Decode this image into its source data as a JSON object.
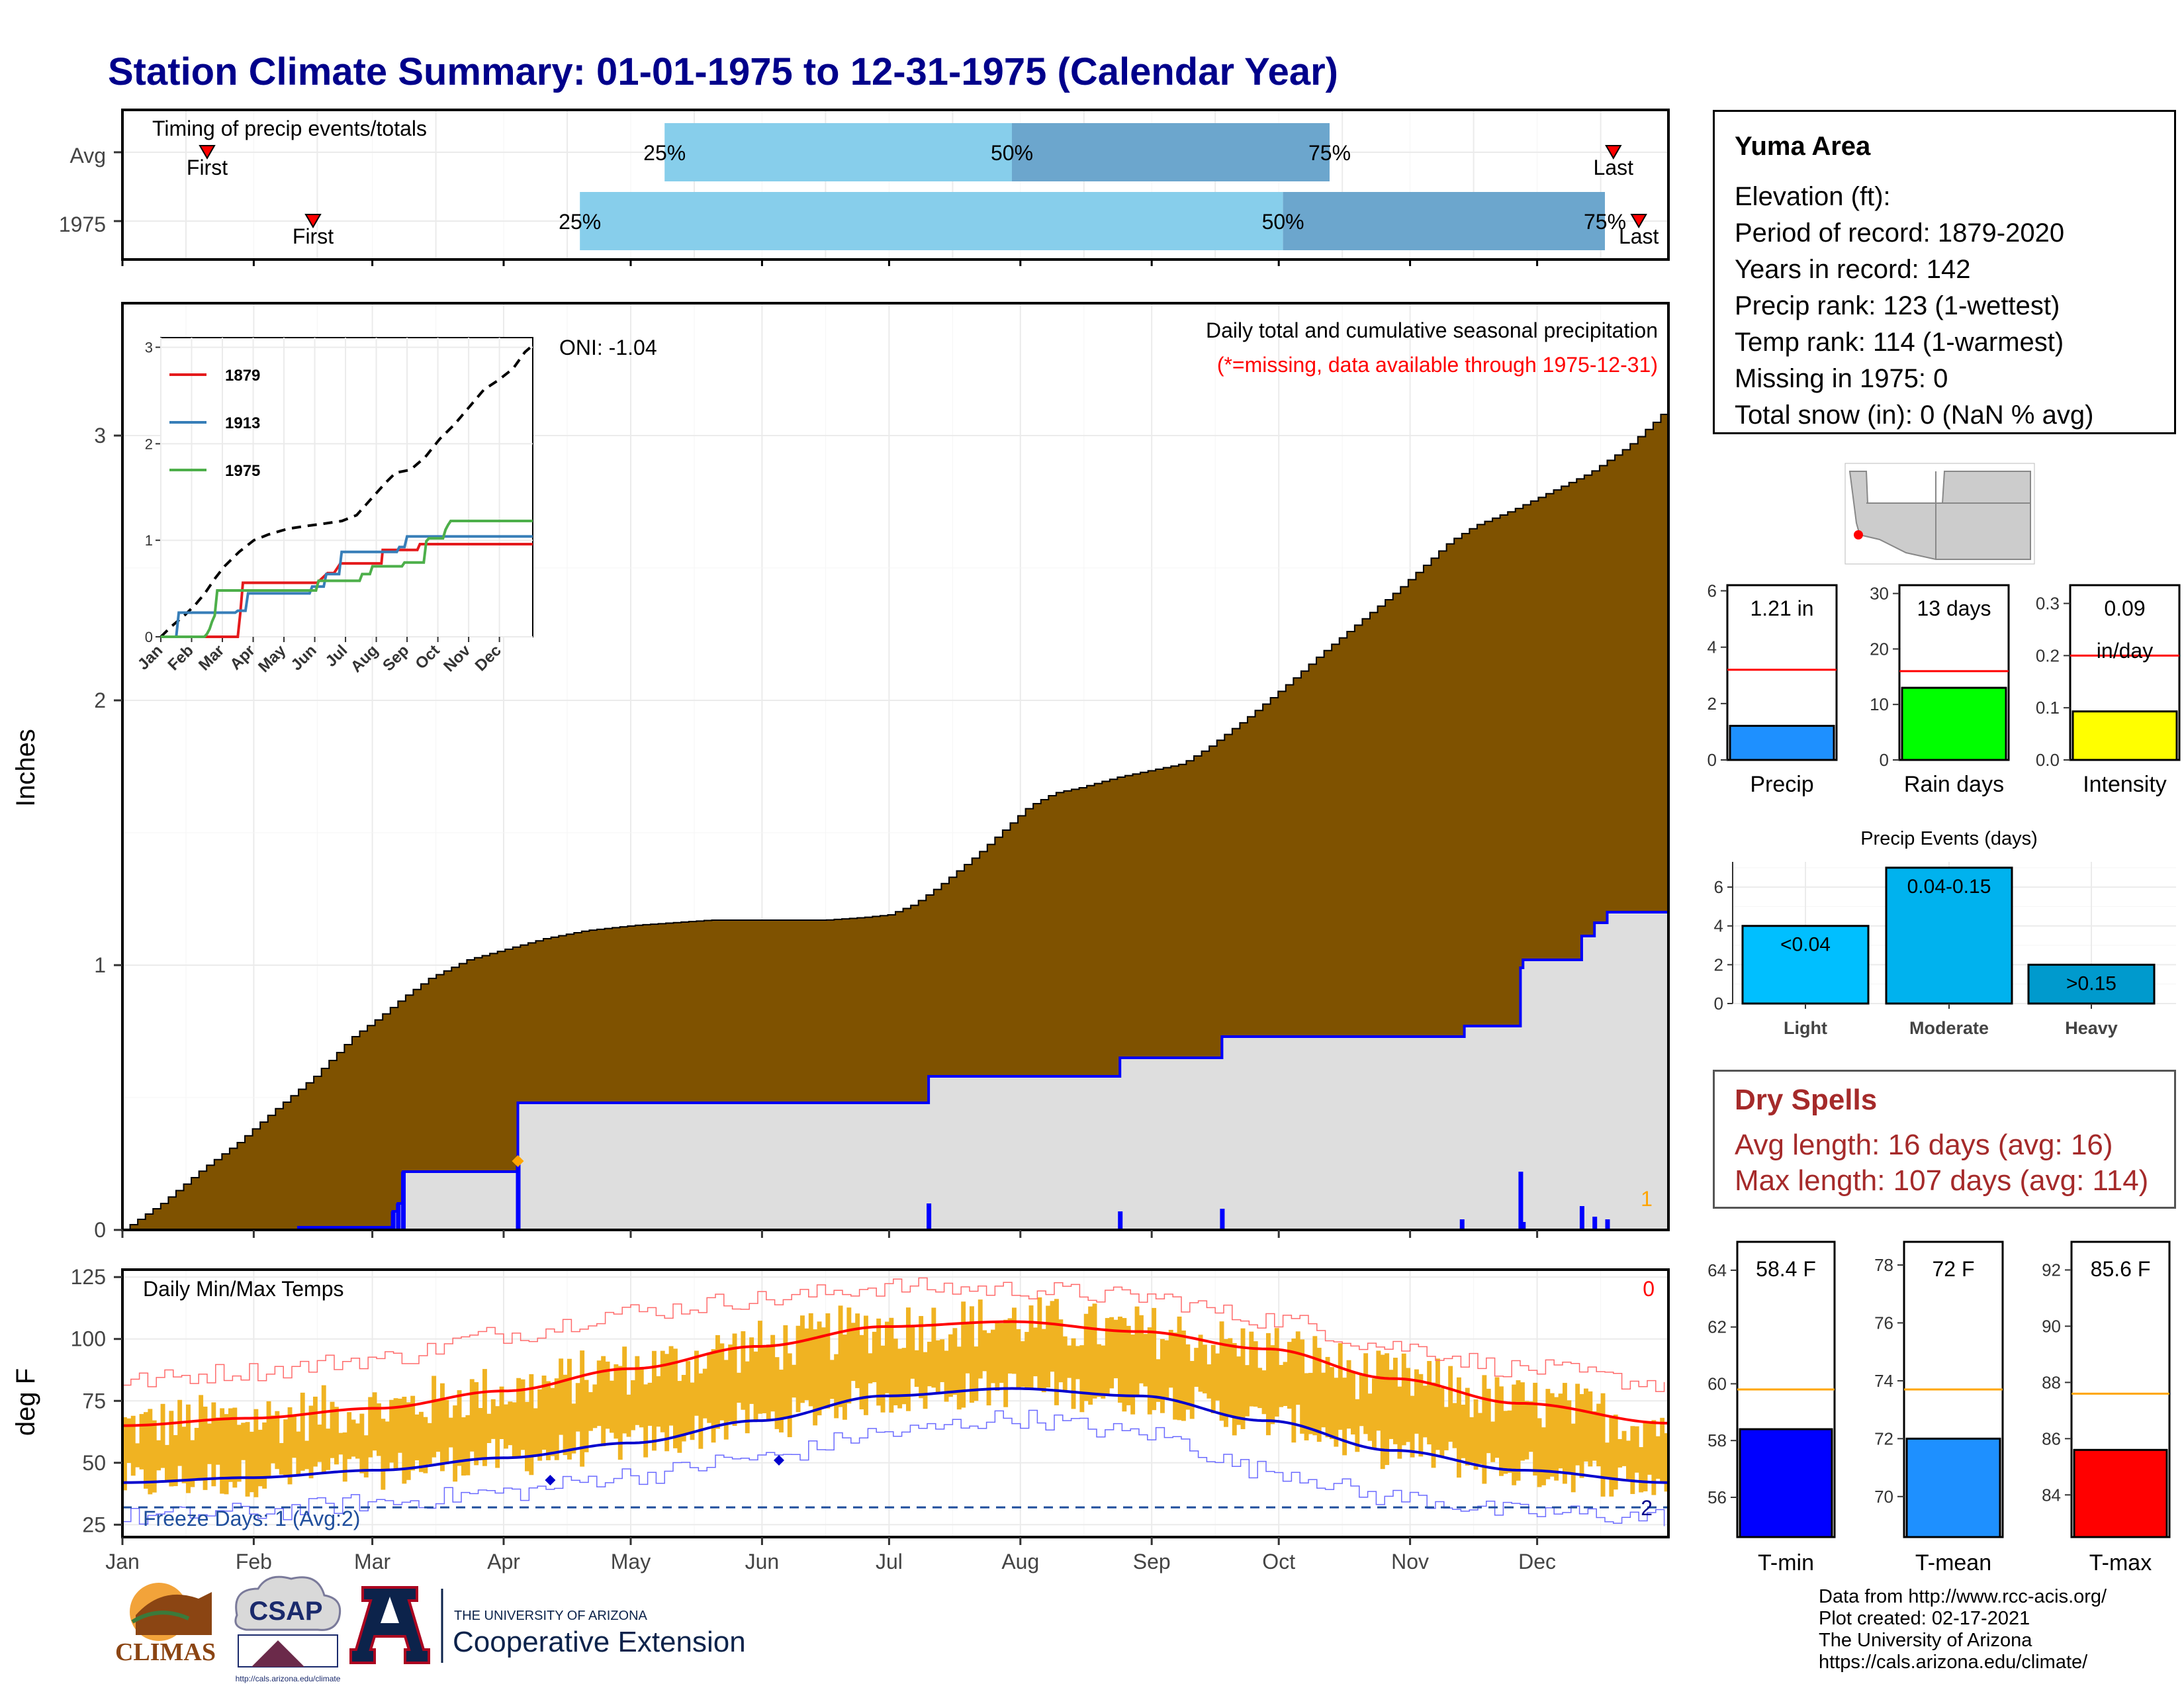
{
  "page": {
    "title": "Station Climate Summary: 01-01-1975 to 12-31-1975 (Calendar Year)"
  },
  "colors": {
    "title": "#00008b",
    "precip_fill": "#7f5200",
    "avg_fill": "#dedede",
    "blue_line": "#0000ff",
    "light_blue": "#87ceeb",
    "mid_blue": "#6ca6cd",
    "temp_bar": "#f0b322",
    "dry_title": "#a52a2a"
  },
  "station": {
    "name": "Yuma Area",
    "lines": [
      "Elevation (ft):",
      "Period of record: 1879-2020",
      "Years in record: 142",
      "Precip rank: 123 (1-wettest)",
      "Temp rank: 114 (1-warmest)",
      "Missing in 1975: 0",
      "Total snow (in): 0 (NaN % avg)"
    ]
  },
  "timing": {
    "title": "Timing of precip events/totals",
    "rows": [
      "Avg",
      "1975"
    ],
    "avg": {
      "first_doy": 20,
      "q25_doy": 128,
      "q50_doy": 210,
      "q75_doy": 285,
      "last_doy": 352
    },
    "year": {
      "first_doy": 45,
      "q25_doy": 108,
      "q50_doy": 274,
      "q75_doy": 350,
      "last_doy": 358
    },
    "labels": {
      "first": "First",
      "last": "Last",
      "q25": "25%",
      "q50": "50%",
      "q75": "75%"
    }
  },
  "main_chart": {
    "ylabel": "Inches",
    "ylim": [
      0,
      3.5
    ],
    "yticks": [
      0,
      1,
      2,
      3
    ],
    "months": [
      "Jan",
      "Feb",
      "Mar",
      "Apr",
      "May",
      "Jun",
      "Jul",
      "Aug",
      "Sep",
      "Oct",
      "Nov",
      "Dec"
    ],
    "oni": "ONI: -1.04",
    "legend_title": "Daily total and cumulative seasonal precipitation",
    "legend_note": "(*=missing, data available through 1975-12-31)",
    "corner_count": "1",
    "avg_cumulative": [
      [
        0,
        0
      ],
      [
        15,
        0.1
      ],
      [
        31,
        0.23
      ],
      [
        45,
        0.33
      ],
      [
        59,
        0.45
      ],
      [
        75,
        0.58
      ],
      [
        90,
        0.73
      ],
      [
        100,
        0.8
      ],
      [
        110,
        0.88
      ],
      [
        120,
        0.95
      ],
      [
        135,
        1.02
      ],
      [
        150,
        1.06
      ],
      [
        165,
        1.1
      ],
      [
        181,
        1.13
      ],
      [
        200,
        1.15
      ],
      [
        215,
        1.16
      ],
      [
        230,
        1.17
      ],
      [
        245,
        1.17
      ],
      [
        260,
        1.17
      ],
      [
        275,
        1.17
      ],
      [
        290,
        1.18
      ],
      [
        300,
        1.19
      ],
      [
        310,
        1.23
      ],
      [
        320,
        1.3
      ],
      [
        335,
        1.42
      ],
      [
        345,
        1.51
      ],
      [
        355,
        1.6
      ],
      [
        365,
        1.65
      ],
      [
        375,
        1.67
      ],
      [
        390,
        1.71
      ],
      [
        400,
        1.73
      ],
      [
        415,
        1.76
      ],
      [
        425,
        1.82
      ],
      [
        440,
        1.93
      ],
      [
        455,
        2.05
      ],
      [
        470,
        2.18
      ],
      [
        485,
        2.3
      ],
      [
        500,
        2.42
      ],
      [
        510,
        2.51
      ],
      [
        520,
        2.6
      ],
      [
        530,
        2.66
      ],
      [
        545,
        2.72
      ],
      [
        560,
        2.79
      ],
      [
        575,
        2.86
      ],
      [
        590,
        2.96
      ],
      [
        600,
        3.05
      ],
      [
        606,
        3.11
      ]
    ],
    "year_cumulative": [
      [
        0,
        0
      ],
      [
        69,
        0.01
      ],
      [
        103,
        0.01
      ],
      [
        106,
        0.07
      ],
      [
        108,
        0.1
      ],
      [
        110,
        0.22
      ],
      [
        153,
        0.22
      ],
      [
        155,
        0.48
      ],
      [
        315,
        0.48
      ],
      [
        316,
        0.58
      ],
      [
        390,
        0.58
      ],
      [
        391,
        0.65
      ],
      [
        430,
        0.65
      ],
      [
        431,
        0.73
      ],
      [
        525,
        0.73
      ],
      [
        526,
        0.77
      ],
      [
        547,
        0.77
      ],
      [
        548,
        0.99
      ],
      [
        549,
        1.02
      ],
      [
        571,
        1.02
      ],
      [
        572,
        1.11
      ],
      [
        576,
        1.11
      ],
      [
        577,
        1.16
      ],
      [
        581,
        1.16
      ],
      [
        582,
        1.2
      ],
      [
        606,
        1.2
      ]
    ],
    "daily_bars": [
      [
        106,
        0.07
      ],
      [
        108,
        0.1
      ],
      [
        110,
        0.22
      ],
      [
        155,
        0.26
      ],
      [
        316,
        0.1
      ],
      [
        391,
        0.07
      ],
      [
        431,
        0.08
      ],
      [
        525,
        0.04
      ],
      [
        548,
        0.22
      ],
      [
        549,
        0.03
      ],
      [
        572,
        0.09
      ],
      [
        577,
        0.05
      ],
      [
        582,
        0.04
      ]
    ],
    "avg_marker": {
      "day": 155,
      "value": 0.26
    }
  },
  "inset": {
    "series": [
      {
        "name": "1879",
        "color": "#e41a1c",
        "points": [
          [
            0,
            0
          ],
          [
            60,
            0
          ],
          [
            62,
            0.25
          ],
          [
            64,
            0.56
          ],
          [
            121,
            0.56
          ],
          [
            122,
            0.56
          ],
          [
            130,
            0.66
          ],
          [
            135,
            0.66
          ],
          [
            140,
            0.76
          ],
          [
            172,
            0.76
          ],
          [
            173,
            0.9
          ],
          [
            200,
            0.9
          ],
          [
            202,
            0.96
          ],
          [
            290,
            0.96
          ]
        ]
      },
      {
        "name": "1913",
        "color": "#377eb8",
        "points": [
          [
            0,
            0
          ],
          [
            12,
            0
          ],
          [
            14,
            0.25
          ],
          [
            58,
            0.25
          ],
          [
            60,
            0.27
          ],
          [
            66,
            0.27
          ],
          [
            68,
            0.45
          ],
          [
            116,
            0.45
          ],
          [
            118,
            0.52
          ],
          [
            127,
            0.52
          ],
          [
            129,
            0.65
          ],
          [
            139,
            0.65
          ],
          [
            141,
            0.88
          ],
          [
            184,
            0.88
          ],
          [
            186,
            0.93
          ],
          [
            190,
            0.93
          ],
          [
            192,
            1.04
          ],
          [
            290,
            1.04
          ]
        ]
      },
      {
        "name": "1975",
        "color": "#4daf4a",
        "points": [
          [
            0,
            0
          ],
          [
            34,
            0
          ],
          [
            36,
            0.03
          ],
          [
            38,
            0.08
          ],
          [
            40,
            0.16
          ],
          [
            42,
            0.22
          ],
          [
            44,
            0.48
          ],
          [
            121,
            0.48
          ],
          [
            123,
            0.58
          ],
          [
            155,
            0.58
          ],
          [
            157,
            0.65
          ],
          [
            163,
            0.65
          ],
          [
            165,
            0.73
          ],
          [
            188,
            0.73
          ],
          [
            190,
            0.77
          ],
          [
            205,
            0.77
          ],
          [
            207,
            0.99
          ],
          [
            209,
            1.02
          ],
          [
            220,
            1.02
          ],
          [
            222,
            1.11
          ],
          [
            224,
            1.16
          ],
          [
            226,
            1.2
          ],
          [
            290,
            1.2
          ]
        ]
      }
    ],
    "avg_points": [
      [
        0,
        0
      ],
      [
        10,
        0.1
      ],
      [
        25,
        0.23
      ],
      [
        35,
        0.33
      ],
      [
        45,
        0.45
      ],
      [
        55,
        0.6
      ],
      [
        65,
        0.73
      ],
      [
        80,
        0.88
      ],
      [
        95,
        1.0
      ],
      [
        110,
        1.06
      ],
      [
        130,
        1.12
      ],
      [
        150,
        1.15
      ],
      [
        165,
        1.17
      ],
      [
        185,
        1.2
      ],
      [
        200,
        1.26
      ],
      [
        215,
        1.43
      ],
      [
        230,
        1.6
      ],
      [
        240,
        1.7
      ],
      [
        255,
        1.73
      ],
      [
        270,
        1.86
      ],
      [
        285,
        2.05
      ],
      [
        300,
        2.2
      ],
      [
        315,
        2.38
      ],
      [
        330,
        2.56
      ],
      [
        345,
        2.66
      ],
      [
        360,
        2.78
      ],
      [
        372,
        2.95
      ],
      [
        380,
        3.02
      ]
    ],
    "yticks": [
      0,
      1,
      2,
      3
    ],
    "months": [
      "Jan",
      "Feb",
      "Mar",
      "Apr",
      "May",
      "Jun",
      "Jul",
      "Aug",
      "Sep",
      "Oct",
      "Nov",
      "Dec"
    ]
  },
  "temp_chart": {
    "ylabel": "deg F",
    "title": "Daily Min/Max Temps",
    "corner_count": "0",
    "freeze_text": "Freeze Days: 1 (Avg:2)",
    "freeze_count": "2",
    "yticks": [
      25,
      50,
      75,
      100,
      125
    ],
    "ylim": [
      20,
      128
    ],
    "freeze_line": 32,
    "avg_max": [
      [
        0,
        65
      ],
      [
        30,
        68
      ],
      [
        60,
        72
      ],
      [
        90,
        79
      ],
      [
        120,
        88
      ],
      [
        150,
        97
      ],
      [
        180,
        105
      ],
      [
        210,
        107
      ],
      [
        240,
        103
      ],
      [
        270,
        96
      ],
      [
        300,
        84
      ],
      [
        330,
        74
      ],
      [
        365,
        66
      ]
    ],
    "avg_min": [
      [
        0,
        42
      ],
      [
        30,
        44
      ],
      [
        60,
        47
      ],
      [
        90,
        52
      ],
      [
        120,
        58
      ],
      [
        150,
        67
      ],
      [
        180,
        77
      ],
      [
        210,
        80
      ],
      [
        240,
        77
      ],
      [
        270,
        67
      ],
      [
        300,
        55
      ],
      [
        330,
        47
      ],
      [
        365,
        42
      ]
    ],
    "rec_max": [
      [
        0,
        83
      ],
      [
        30,
        87
      ],
      [
        60,
        92
      ],
      [
        90,
        102
      ],
      [
        120,
        111
      ],
      [
        150,
        116
      ],
      [
        180,
        121
      ],
      [
        210,
        120
      ],
      [
        240,
        117
      ],
      [
        270,
        108
      ],
      [
        300,
        97
      ],
      [
        330,
        88
      ],
      [
        365,
        82
      ]
    ],
    "rec_min": [
      [
        0,
        28
      ],
      [
        30,
        30
      ],
      [
        60,
        34
      ],
      [
        90,
        38
      ],
      [
        120,
        45
      ],
      [
        150,
        52
      ],
      [
        180,
        62
      ],
      [
        210,
        68
      ],
      [
        240,
        62
      ],
      [
        270,
        47
      ],
      [
        300,
        36
      ],
      [
        330,
        30
      ],
      [
        365,
        28
      ]
    ],
    "min_markers": [
      [
        101,
        43
      ],
      [
        155,
        51
      ]
    ]
  },
  "precip_bars": {
    "items": [
      {
        "label": "Precip",
        "value_text": "1.21 in",
        "value": 1.21,
        "avg": 3.2,
        "ymax": 6.2,
        "yticks": [
          0,
          2,
          4,
          6
        ],
        "color": "#1e90ff"
      },
      {
        "label": "Rain days",
        "value_text": "13 days",
        "value": 13,
        "avg": 16,
        "ymax": 31.5,
        "yticks": [
          0,
          10,
          20,
          30
        ],
        "color": "#00ff00"
      },
      {
        "label": "Intensity",
        "value_text": "0.09",
        "value_text2": "in/day",
        "value": 0.093,
        "avg": 0.2,
        "ymax": 0.335,
        "yticks": [
          0.0,
          0.1,
          0.2,
          0.3
        ],
        "color": "#ffff00"
      }
    ]
  },
  "precip_events": {
    "title": "Precip Events (days)",
    "categories": [
      "Light",
      "Moderate",
      "Heavy"
    ],
    "labels": [
      "<0.04",
      "0.04-0.15",
      ">0.15"
    ],
    "values": [
      4,
      7,
      2
    ],
    "colors": [
      "#00bfff",
      "#00b2ee",
      "#009acd"
    ],
    "yticks": [
      0,
      2,
      4,
      6
    ],
    "ymax": 7.3
  },
  "dry_spells": {
    "title": "Dry Spells",
    "avg_length": "Avg length: 16 days (avg: 16)",
    "max_length": "Max length: 107 days (avg: 114)"
  },
  "temp_bars": {
    "items": [
      {
        "label": "T-min",
        "value_text": "58.4 F",
        "value": 58.4,
        "avg": 59.8,
        "ymin": 54.6,
        "ymax": 65.0,
        "yticks": [
          56,
          58,
          60,
          62,
          64
        ],
        "color": "#0000ff"
      },
      {
        "label": "T-mean",
        "value_text": "72 F",
        "value": 72.0,
        "avg": 73.7,
        "ymin": 68.6,
        "ymax": 78.8,
        "yticks": [
          70,
          72,
          74,
          76,
          78
        ],
        "color": "#1e90ff"
      },
      {
        "label": "T-max",
        "value_text": "85.6 F",
        "value": 85.6,
        "avg": 87.6,
        "ymin": 82.5,
        "ymax": 93.0,
        "yticks": [
          84,
          86,
          88,
          90,
          92
        ],
        "color": "#ff0000"
      }
    ]
  },
  "credits": [
    "Data from http://www.rcc-acis.org/",
    "Plot created: 02-17-2021",
    "The University of Arizona",
    "https://cals.arizona.edu/climate/"
  ],
  "logos": {
    "climas": "CLIMAS",
    "csap": "CSAP",
    "ua_small": "THE UNIVERSITY OF ARIZONA",
    "ua_big": "Cooperative Extension",
    "a_letter": "A",
    "csap_url": "http://cals.arizona.edu/climate"
  }
}
